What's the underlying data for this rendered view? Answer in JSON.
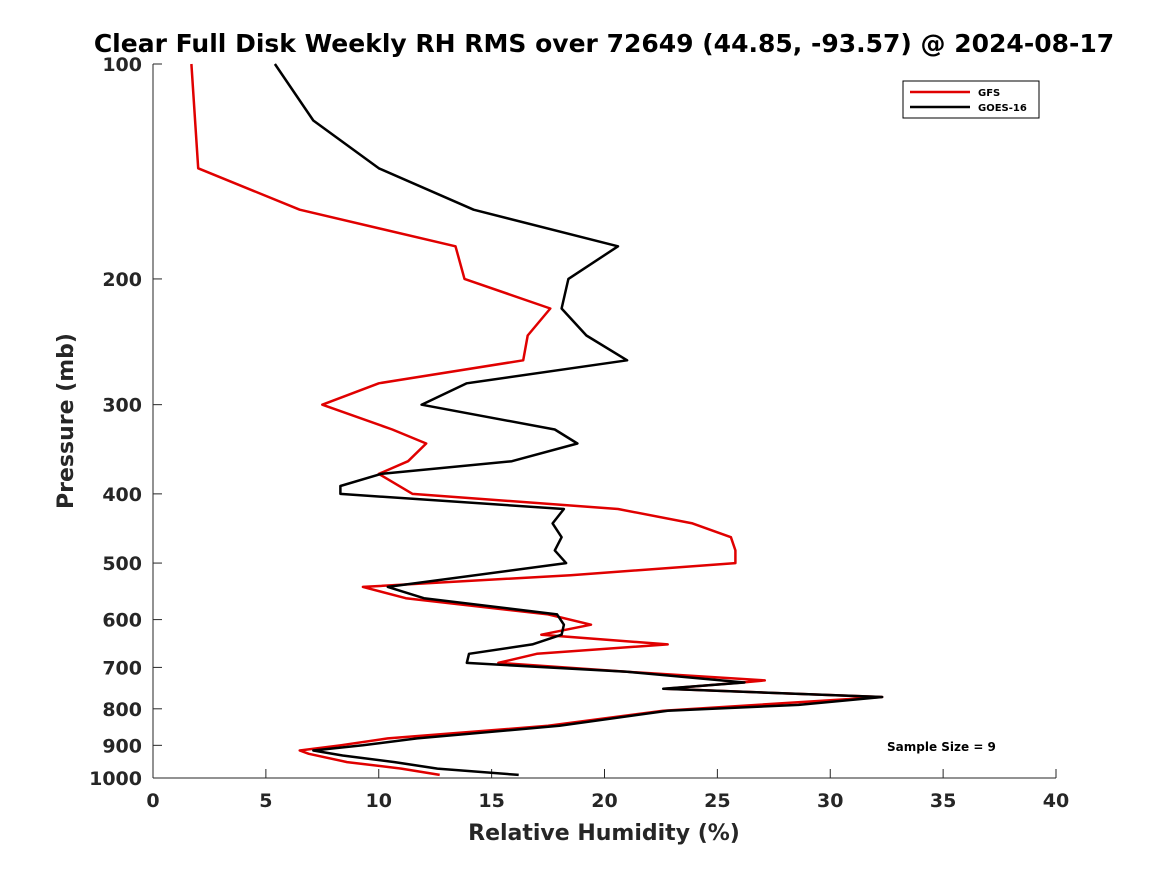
{
  "chart_data": {
    "type": "line",
    "title": "Clear Full Disk Weekly RH RMS over 72649 (44.85, -93.57) @ 2024-08-17",
    "xlabel": "Relative Humidity (%)",
    "ylabel": "Pressure (mb)",
    "xlim": [
      0,
      40
    ],
    "ylim": [
      100,
      1000
    ],
    "yscale": "log",
    "y_reversed": true,
    "xticks": [
      0,
      5,
      10,
      15,
      20,
      25,
      30,
      35,
      40
    ],
    "yticks": [
      100,
      200,
      300,
      400,
      500,
      600,
      700,
      800,
      900,
      1000
    ],
    "grid": false,
    "legend_position": "top-right",
    "annotation": "Sample Size = 9",
    "colors": {
      "GFS": "#e00000",
      "GOES-16": "#000000",
      "axes": "#262626"
    },
    "series": [
      {
        "name": "GFS",
        "color": "#e00000",
        "points": [
          [
            1.7,
            100
          ],
          [
            2.0,
            140
          ],
          [
            6.5,
            160
          ],
          [
            13.4,
            180
          ],
          [
            13.8,
            200
          ],
          [
            17.6,
            220
          ],
          [
            16.6,
            240
          ],
          [
            16.4,
            260
          ],
          [
            10.0,
            280
          ],
          [
            7.5,
            300
          ],
          [
            10.6,
            325
          ],
          [
            12.1,
            340
          ],
          [
            11.3,
            360
          ],
          [
            10.0,
            375
          ],
          [
            11.5,
            400
          ],
          [
            20.6,
            420
          ],
          [
            23.9,
            440
          ],
          [
            25.6,
            460
          ],
          [
            25.8,
            480
          ],
          [
            25.8,
            500
          ],
          [
            18.5,
            520
          ],
          [
            9.3,
            540
          ],
          [
            11.2,
            560
          ],
          [
            17.5,
            590
          ],
          [
            19.4,
            610
          ],
          [
            17.2,
            630
          ],
          [
            22.8,
            650
          ],
          [
            17.0,
            670
          ],
          [
            15.3,
            690
          ],
          [
            21.0,
            710
          ],
          [
            27.1,
            730
          ],
          [
            26.1,
            735
          ],
          [
            22.7,
            750
          ],
          [
            32.3,
            770
          ],
          [
            22.6,
            805
          ],
          [
            17.5,
            845
          ],
          [
            10.4,
            880
          ],
          [
            8.3,
            900
          ],
          [
            6.5,
            915
          ],
          [
            6.9,
            925
          ],
          [
            8.6,
            950
          ],
          [
            11.0,
            970
          ],
          [
            12.7,
            990
          ]
        ]
      },
      {
        "name": "GOES-16",
        "color": "#000000",
        "points": [
          [
            5.4,
            100
          ],
          [
            7.1,
            120
          ],
          [
            10.0,
            140
          ],
          [
            14.2,
            160
          ],
          [
            20.6,
            180
          ],
          [
            18.4,
            200
          ],
          [
            18.1,
            220
          ],
          [
            19.2,
            240
          ],
          [
            21.0,
            260
          ],
          [
            13.9,
            280
          ],
          [
            11.9,
            300
          ],
          [
            17.8,
            325
          ],
          [
            18.8,
            340
          ],
          [
            15.9,
            360
          ],
          [
            10.1,
            375
          ],
          [
            8.3,
            390
          ],
          [
            8.3,
            400
          ],
          [
            18.2,
            420
          ],
          [
            17.7,
            440
          ],
          [
            18.1,
            460
          ],
          [
            17.8,
            480
          ],
          [
            18.3,
            500
          ],
          [
            10.4,
            540
          ],
          [
            12.0,
            560
          ],
          [
            17.9,
            590
          ],
          [
            18.2,
            610
          ],
          [
            18.1,
            630
          ],
          [
            16.8,
            650
          ],
          [
            14.0,
            670
          ],
          [
            13.9,
            690
          ],
          [
            21.0,
            710
          ],
          [
            26.2,
            735
          ],
          [
            22.6,
            750
          ],
          [
            32.3,
            770
          ],
          [
            28.6,
            790
          ],
          [
            22.8,
            805
          ],
          [
            18.0,
            845
          ],
          [
            11.7,
            880
          ],
          [
            9.3,
            900
          ],
          [
            7.1,
            915
          ],
          [
            8.4,
            930
          ],
          [
            10.7,
            950
          ],
          [
            12.6,
            970
          ],
          [
            16.2,
            990
          ]
        ]
      }
    ]
  }
}
